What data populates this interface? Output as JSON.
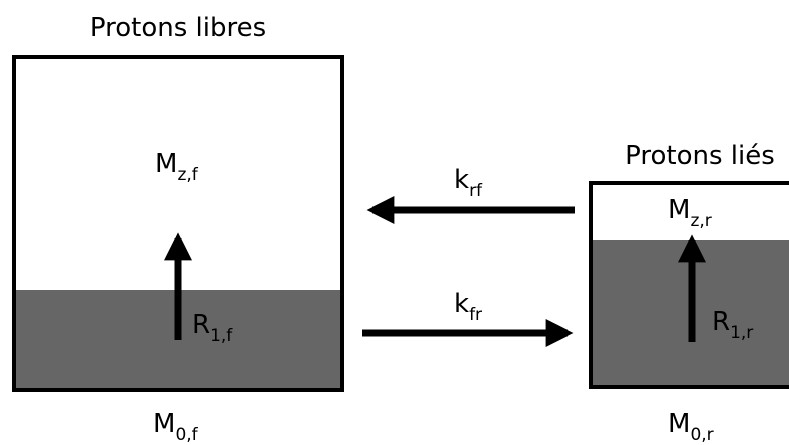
{
  "pools": [
    {
      "title": "Protons libres",
      "mz": {
        "symbol": "M",
        "subscript": "z,f"
      },
      "r1": {
        "symbol": "R",
        "subscript": "1,f"
      },
      "m0": {
        "symbol": "M",
        "subscript": "0,f"
      }
    },
    {
      "title": "Protons liés",
      "mz": {
        "symbol": "M",
        "subscript": "z,r"
      },
      "r1": {
        "symbol": "R",
        "subscript": "1,r"
      },
      "m0": {
        "symbol": "M",
        "subscript": "0,r"
      }
    }
  ],
  "exchange": [
    {
      "symbol": "k",
      "subscript": "rf"
    },
    {
      "symbol": "k",
      "subscript": "fr"
    }
  ]
}
